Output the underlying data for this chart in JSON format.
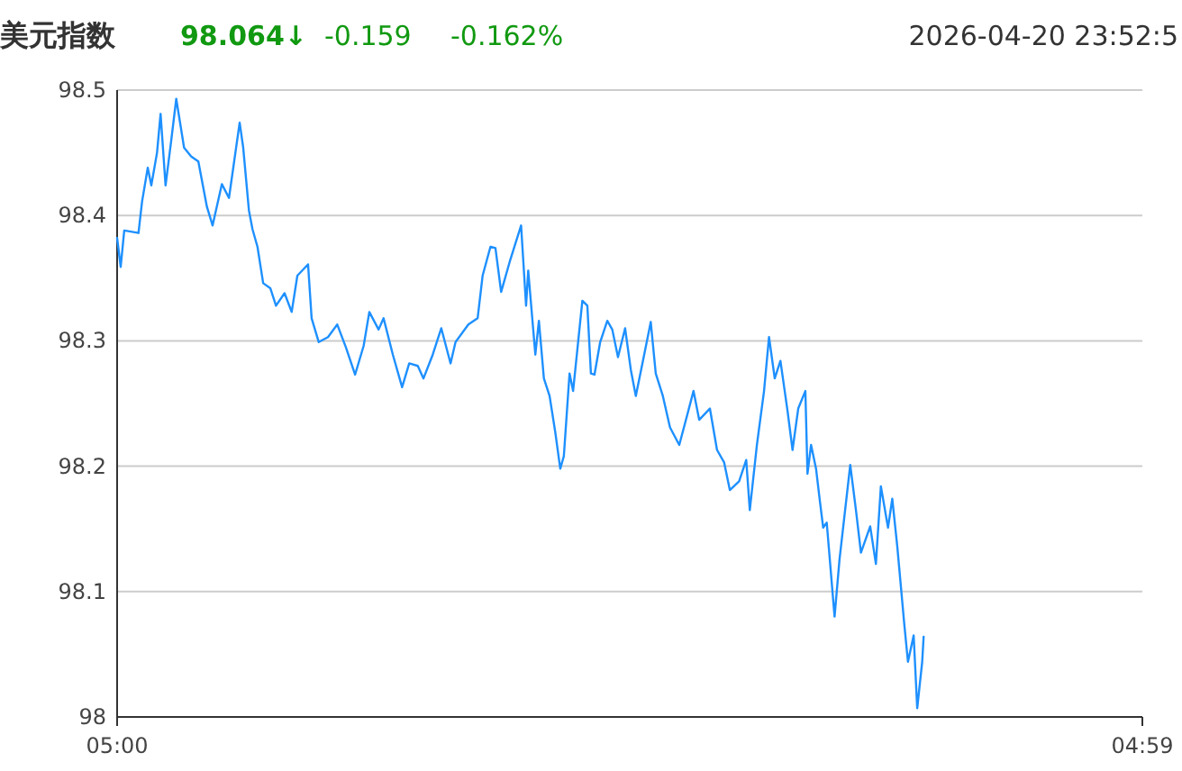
{
  "chart_data": {
    "type": "line",
    "title": "美元指数",
    "annotations": [
      "98.064↓",
      "-0.159",
      "-0.162%",
      "2026-04-20 23:52:5"
    ],
    "xlim": [
      "2026-04-20T05:00",
      "2026-04-21T04:59"
    ],
    "xticks": [
      {
        "value": "2026-04-20T05:00",
        "label": "05:00"
      },
      {
        "value": "2026-04-21T04:59",
        "label": "04:59"
      }
    ],
    "ylim": [
      98,
      98.5
    ],
    "yticks": [
      {
        "value": 98,
        "label": "98"
      },
      98.1,
      98.2,
      98.3,
      98.4,
      98.5
    ],
    "grid": "y",
    "marker": "none",
    "line_style": "solid",
    "series": [
      {
        "color": "#1e90ff",
        "x": [
          "2026-04-20T05:00",
          "2026-04-20T05:05",
          "2026-04-20T05:10",
          "2026-04-20T05:30",
          "2026-04-20T05:35",
          "2026-04-20T05:43",
          "2026-04-20T05:48",
          "2026-04-20T05:56",
          "2026-04-20T06:01",
          "2026-04-20T06:08",
          "2026-04-20T06:16",
          "2026-04-20T06:23",
          "2026-04-20T06:34",
          "2026-04-20T06:44",
          "2026-04-20T06:54",
          "2026-04-20T07:06",
          "2026-04-20T07:14",
          "2026-04-20T07:27",
          "2026-04-20T07:37",
          "2026-04-20T07:52",
          "2026-04-20T07:57",
          "2026-04-20T08:05",
          "2026-04-20T08:10",
          "2026-04-20T08:17",
          "2026-04-20T08:25",
          "2026-04-20T08:35",
          "2026-04-20T08:43",
          "2026-04-20T08:55",
          "2026-04-20T09:05",
          "2026-04-20T09:13",
          "2026-04-20T09:28",
          "2026-04-20T09:33",
          "2026-04-20T09:43",
          "2026-04-20T09:56",
          "2026-04-20T10:09",
          "2026-04-20T10:21",
          "2026-04-20T10:34",
          "2026-04-20T10:46",
          "2026-04-20T10:54",
          "2026-04-20T11:07",
          "2026-04-20T11:14",
          "2026-04-20T11:27",
          "2026-04-20T11:40",
          "2026-04-20T11:50",
          "2026-04-20T12:02",
          "2026-04-20T12:10",
          "2026-04-20T12:23",
          "2026-04-20T12:35",
          "2026-04-20T12:48",
          "2026-04-20T12:55",
          "2026-04-20T13:13",
          "2026-04-20T13:26",
          "2026-04-20T13:33",
          "2026-04-20T13:44",
          "2026-04-20T13:51",
          "2026-04-20T13:59",
          "2026-04-20T14:11",
          "2026-04-20T14:27",
          "2026-04-20T14:34",
          "2026-04-20T14:37",
          "2026-04-20T14:47",
          "2026-04-20T14:52",
          "2026-04-20T14:59",
          "2026-04-20T15:07",
          "2026-04-20T15:15",
          "2026-04-20T15:22",
          "2026-04-20T15:27",
          "2026-04-20T15:35",
          "2026-04-20T15:40",
          "2026-04-20T15:53",
          "2026-04-20T16:00",
          "2026-04-20T16:05",
          "2026-04-20T16:10",
          "2026-04-20T16:18",
          "2026-04-20T16:28",
          "2026-04-20T16:35",
          "2026-04-20T16:43",
          "2026-04-20T16:53",
          "2026-04-20T17:01",
          "2026-04-20T17:08",
          "2026-04-20T17:18",
          "2026-04-20T17:29",
          "2026-04-20T17:36",
          "2026-04-20T17:46",
          "2026-04-20T17:56",
          "2026-04-20T18:09",
          "2026-04-20T18:17",
          "2026-04-20T18:29",
          "2026-04-20T18:37",
          "2026-04-20T18:52",
          "2026-04-20T19:02",
          "2026-04-20T19:12",
          "2026-04-20T19:20",
          "2026-04-20T19:33",
          "2026-04-20T19:43",
          "2026-04-20T19:48",
          "2026-04-20T19:58",
          "2026-04-20T20:08",
          "2026-04-20T20:15",
          "2026-04-20T20:23",
          "2026-04-20T20:31",
          "2026-04-20T20:41",
          "2026-04-20T20:48",
          "2026-04-20T20:56",
          "2026-04-20T21:06",
          "2026-04-20T21:09",
          "2026-04-20T21:14",
          "2026-04-20T21:21",
          "2026-04-20T21:26",
          "2026-04-20T21:31",
          "2026-04-20T21:36",
          "2026-04-20T21:47",
          "2026-04-20T21:54",
          "2026-04-20T21:59",
          "2026-04-20T22:09",
          "2026-04-20T22:17",
          "2026-04-20T22:24",
          "2026-04-20T22:37",
          "2026-04-20T22:45",
          "2026-04-20T22:52",
          "2026-04-20T23:02",
          "2026-04-20T23:08",
          "2026-04-20T23:15",
          "2026-04-20T23:25",
          "2026-04-20T23:30",
          "2026-04-20T23:38",
          "2026-04-20T23:43",
          "2026-04-20T23:50",
          "2026-04-20T23:52"
        ],
        "values": [
          98.382,
          98.359,
          98.388,
          98.386,
          98.411,
          98.438,
          98.424,
          98.45,
          98.481,
          98.424,
          98.46,
          98.493,
          98.454,
          98.447,
          98.443,
          98.407,
          98.392,
          98.425,
          98.414,
          98.474,
          98.454,
          98.404,
          98.389,
          98.375,
          98.346,
          98.342,
          98.328,
          98.338,
          98.323,
          98.352,
          98.361,
          98.318,
          98.299,
          98.303,
          98.313,
          98.295,
          98.273,
          98.296,
          98.323,
          98.309,
          98.318,
          98.289,
          98.263,
          98.282,
          98.28,
          98.27,
          98.289,
          98.31,
          98.282,
          98.299,
          98.313,
          98.318,
          98.352,
          98.375,
          98.374,
          98.339,
          98.363,
          98.392,
          98.328,
          98.356,
          98.289,
          98.316,
          98.27,
          98.256,
          98.227,
          98.198,
          98.208,
          98.274,
          98.26,
          98.332,
          98.328,
          98.274,
          98.273,
          98.299,
          98.316,
          98.309,
          98.287,
          98.31,
          98.277,
          98.256,
          98.284,
          98.315,
          98.274,
          98.256,
          98.231,
          98.217,
          98.234,
          98.26,
          98.237,
          98.246,
          98.213,
          98.203,
          98.181,
          98.188,
          98.205,
          98.165,
          98.217,
          98.26,
          98.303,
          98.27,
          98.284,
          98.244,
          98.213,
          98.246,
          98.26,
          98.194,
          98.217,
          98.198,
          98.174,
          98.151,
          98.155,
          98.08,
          98.126,
          98.151,
          98.201,
          98.165,
          98.131,
          98.152,
          98.122,
          98.184,
          98.151,
          98.174,
          98.136,
          98.073,
          98.044,
          98.065,
          98.007,
          98.044,
          98.064
        ]
      }
    ]
  }
}
